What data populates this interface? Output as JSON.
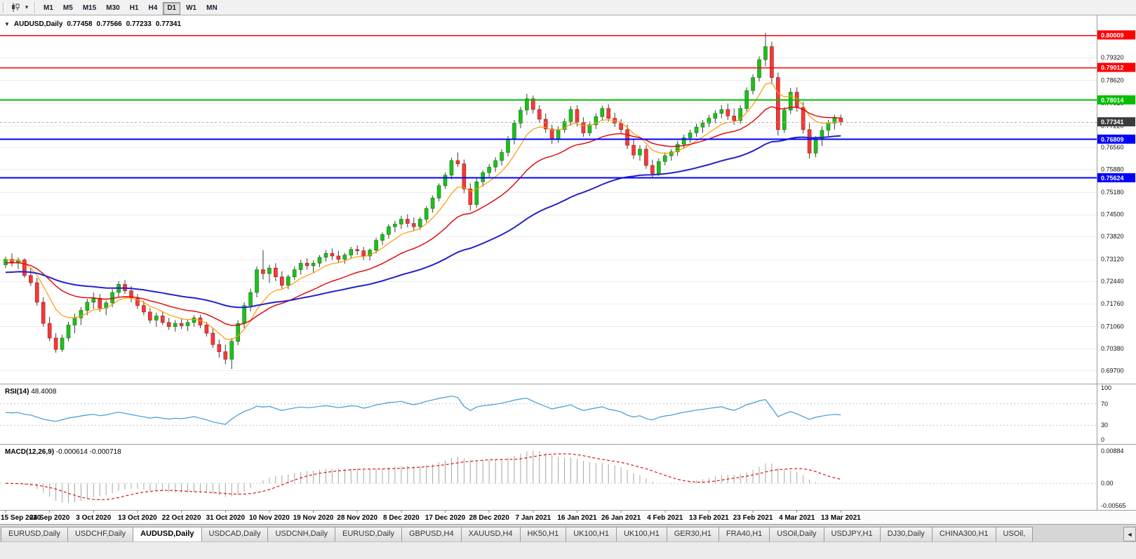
{
  "icons": {
    "collapse": "▼",
    "dropdown": "▾",
    "tab_scroll_left": "◄"
  },
  "toolbar": {
    "periods": [
      {
        "label": "M1",
        "active": false
      },
      {
        "label": "M5",
        "active": false
      },
      {
        "label": "M15",
        "active": false
      },
      {
        "label": "M30",
        "active": false
      },
      {
        "label": "H1",
        "active": false
      },
      {
        "label": "H4",
        "active": false
      },
      {
        "label": "D1",
        "active": true
      },
      {
        "label": "W1",
        "active": false
      },
      {
        "label": "MN",
        "active": false
      }
    ]
  },
  "chart": {
    "header": {
      "symbol": "AUDUSD,Daily",
      "open": "0.77458",
      "high": "0.77566",
      "low": "0.77233",
      "close": "0.77341"
    }
  },
  "rsi": {
    "name": "RSI(14)",
    "value": "48.4008",
    "axis_labels": [
      "100",
      "70",
      "30",
      "0"
    ],
    "levels": [
      70,
      30
    ]
  },
  "macd": {
    "name": "MACD(12,26,9)",
    "values": "-0.000614 -0.000718",
    "axis_labels": [
      "0.00884",
      "0.00",
      "-0.00565"
    ]
  },
  "tabs": {
    "items": [
      {
        "label": "EURUSD,Daily",
        "active": false
      },
      {
        "label": "USDCHF,Daily",
        "active": false
      },
      {
        "label": "AUDUSD,Daily",
        "active": true
      },
      {
        "label": "USDCAD,Daily",
        "active": false
      },
      {
        "label": "USDCNH,Daily",
        "active": false
      },
      {
        "label": "EURUSD,Daily",
        "active": false
      },
      {
        "label": "GBPUSD,H4",
        "active": false
      },
      {
        "label": "XAUUSD,H4",
        "active": false
      },
      {
        "label": "HK50,H1",
        "active": false
      },
      {
        "label": "UK100,H1",
        "active": false
      },
      {
        "label": "UK100,H1",
        "active": false
      },
      {
        "label": "GER30,H1",
        "active": false
      },
      {
        "label": "FRA40,H1",
        "active": false
      },
      {
        "label": "USOil,Daily",
        "active": false
      },
      {
        "label": "USDJPY,H1",
        "active": false
      },
      {
        "label": "DJ30,Daily",
        "active": false
      },
      {
        "label": "CHINA300,H1",
        "active": false
      },
      {
        "label": "USOil,",
        "active": false
      }
    ]
  },
  "chart_data": {
    "type": "candlestick",
    "symbol": "AUDUSD",
    "timeframe": "Daily",
    "ylim": [
      0.6958,
      0.8022
    ],
    "colors": {
      "up": "#1FBE1F",
      "up_stroke": "#0B7A0B",
      "down": "#F23B3B",
      "down_stroke": "#A51414",
      "wick": "#3C3C3C",
      "ma_fast": "#FF9900",
      "ma_mid": "#E00000",
      "ma_slow": "#2222CC",
      "rsi": "#3E9BD8",
      "macd_hist": "#A6A6A6",
      "macd_signal": "#E00000",
      "grid": "#EDEDED",
      "axis_line": "#9A9A9A",
      "current_line": "#B0B0B0",
      "current_box": "#3B3B3B"
    },
    "price_ticks": [
      "0.79320",
      "0.78620",
      "0.77920",
      "0.77220",
      "0.76560",
      "0.75880",
      "0.75180",
      "0.74500",
      "0.73820",
      "0.73120",
      "0.72440",
      "0.71760",
      "0.71060",
      "0.70380",
      "0.69700"
    ],
    "hlines": [
      {
        "price": 0.80009,
        "label": "0.80009",
        "color": "#FF0000",
        "width": 1.5
      },
      {
        "price": 0.79012,
        "label": "0.79012",
        "color": "#FF0000",
        "width": 1.5
      },
      {
        "price": 0.78014,
        "label": "0.78014",
        "color": "#00BE00",
        "width": 2
      },
      {
        "price": 0.76809,
        "label": "0.76809",
        "color": "#0000FF",
        "width": 2
      },
      {
        "price": 0.75624,
        "label": "0.75624",
        "color": "#0000FF",
        "width": 2
      }
    ],
    "current_price": {
      "price": 0.77341,
      "label": "0.77341"
    },
    "indicators": {
      "ma_fast_period": 8,
      "ma_mid_period": 21,
      "ma_slow_period": 55,
      "rsi_period": 14,
      "macd": [
        12,
        26,
        9
      ]
    },
    "time_tick_every": 7,
    "time_labels": [
      "15 Sep 2020",
      "24 Sep 2020",
      "3 Oct 2020",
      "13 Oct 2020",
      "22 Oct 2020",
      "31 Oct 2020",
      "10 Nov 2020",
      "19 Nov 2020",
      "28 Nov 2020",
      "8 Dec 2020",
      "17 Dec 2020",
      "28 Dec 2020",
      "7 Jan 2021",
      "16 Jan 2021",
      "26 Jan 2021",
      "4 Feb 2021",
      "13 Feb 2021",
      "23 Feb 2021",
      "4 Mar 2021",
      "13 Mar 2021"
    ],
    "ohlc": [
      [
        0.7295,
        0.732,
        0.7285,
        0.7312
      ],
      [
        0.7312,
        0.733,
        0.729,
        0.73
      ],
      [
        0.73,
        0.7318,
        0.7282,
        0.731
      ],
      [
        0.731,
        0.7315,
        0.7255,
        0.7262
      ],
      [
        0.7262,
        0.7285,
        0.723,
        0.724
      ],
      [
        0.724,
        0.7255,
        0.717,
        0.718
      ],
      [
        0.718,
        0.7195,
        0.7105,
        0.7115
      ],
      [
        0.7115,
        0.7135,
        0.706,
        0.707
      ],
      [
        0.707,
        0.7085,
        0.7025,
        0.7035
      ],
      [
        0.7035,
        0.708,
        0.7028,
        0.707
      ],
      [
        0.707,
        0.712,
        0.706,
        0.711
      ],
      [
        0.711,
        0.7145,
        0.7085,
        0.7132
      ],
      [
        0.7132,
        0.7165,
        0.711,
        0.7155
      ],
      [
        0.7155,
        0.719,
        0.714,
        0.718
      ],
      [
        0.718,
        0.721,
        0.716,
        0.7192
      ],
      [
        0.7192,
        0.7205,
        0.715,
        0.7162
      ],
      [
        0.7162,
        0.7185,
        0.714,
        0.7178
      ],
      [
        0.7178,
        0.722,
        0.7165,
        0.721
      ],
      [
        0.721,
        0.7245,
        0.7195,
        0.7235
      ],
      [
        0.7235,
        0.7248,
        0.7205,
        0.7215
      ],
      [
        0.7215,
        0.723,
        0.718,
        0.7192
      ],
      [
        0.7192,
        0.7205,
        0.716,
        0.717
      ],
      [
        0.717,
        0.7185,
        0.714,
        0.715
      ],
      [
        0.715,
        0.7162,
        0.7115,
        0.7125
      ],
      [
        0.7125,
        0.7148,
        0.7105,
        0.7138
      ],
      [
        0.7138,
        0.7152,
        0.711,
        0.7118
      ],
      [
        0.7118,
        0.7132,
        0.7095,
        0.7105
      ],
      [
        0.7105,
        0.7125,
        0.709,
        0.7115
      ],
      [
        0.7115,
        0.713,
        0.7098,
        0.7108
      ],
      [
        0.7108,
        0.7125,
        0.7092,
        0.7118
      ],
      [
        0.7118,
        0.714,
        0.7105,
        0.7132
      ],
      [
        0.7132,
        0.7142,
        0.71,
        0.711
      ],
      [
        0.711,
        0.712,
        0.7075,
        0.7085
      ],
      [
        0.7085,
        0.71,
        0.704,
        0.705
      ],
      [
        0.705,
        0.7065,
        0.701,
        0.7028
      ],
      [
        0.7028,
        0.705,
        0.699,
        0.7005
      ],
      [
        0.7005,
        0.707,
        0.6975,
        0.706
      ],
      [
        0.706,
        0.7125,
        0.7048,
        0.7115
      ],
      [
        0.7115,
        0.718,
        0.71,
        0.717
      ],
      [
        0.717,
        0.7222,
        0.7152,
        0.721
      ],
      [
        0.721,
        0.729,
        0.7195,
        0.728
      ],
      [
        0.728,
        0.734,
        0.725,
        0.7268
      ],
      [
        0.7268,
        0.7295,
        0.724,
        0.7285
      ],
      [
        0.7285,
        0.73,
        0.7245,
        0.7258
      ],
      [
        0.7258,
        0.7275,
        0.7222,
        0.7232
      ],
      [
        0.7232,
        0.7265,
        0.722,
        0.7258
      ],
      [
        0.7258,
        0.729,
        0.7248,
        0.728
      ],
      [
        0.728,
        0.731,
        0.7265,
        0.73
      ],
      [
        0.73,
        0.7315,
        0.728,
        0.7292
      ],
      [
        0.7292,
        0.7308,
        0.727,
        0.73
      ],
      [
        0.73,
        0.7325,
        0.7288,
        0.7318
      ],
      [
        0.7318,
        0.734,
        0.7305,
        0.733
      ],
      [
        0.733,
        0.7345,
        0.731,
        0.7322
      ],
      [
        0.7322,
        0.7338,
        0.73,
        0.7312
      ],
      [
        0.7312,
        0.7332,
        0.7298,
        0.7325
      ],
      [
        0.7325,
        0.735,
        0.7315,
        0.7342
      ],
      [
        0.7342,
        0.7355,
        0.7325,
        0.7338
      ],
      [
        0.7338,
        0.735,
        0.731,
        0.7322
      ],
      [
        0.7322,
        0.7345,
        0.7308,
        0.734
      ],
      [
        0.734,
        0.7378,
        0.733,
        0.737
      ],
      [
        0.737,
        0.7395,
        0.7355,
        0.7388
      ],
      [
        0.7388,
        0.742,
        0.7375,
        0.7412
      ],
      [
        0.7412,
        0.743,
        0.7395,
        0.742
      ],
      [
        0.742,
        0.7445,
        0.7405,
        0.7435
      ],
      [
        0.7435,
        0.745,
        0.741,
        0.7422
      ],
      [
        0.7422,
        0.744,
        0.74,
        0.7412
      ],
      [
        0.7412,
        0.7442,
        0.7402,
        0.7435
      ],
      [
        0.7435,
        0.7475,
        0.7425,
        0.7468
      ],
      [
        0.7468,
        0.7508,
        0.7455,
        0.75
      ],
      [
        0.75,
        0.7545,
        0.749,
        0.7538
      ],
      [
        0.7538,
        0.7578,
        0.7528,
        0.757
      ],
      [
        0.757,
        0.7624,
        0.7558,
        0.7615
      ],
      [
        0.7615,
        0.764,
        0.7595,
        0.7605
      ],
      [
        0.7605,
        0.7618,
        0.7515,
        0.7528
      ],
      [
        0.7528,
        0.7545,
        0.7462,
        0.748
      ],
      [
        0.748,
        0.756,
        0.747,
        0.755
      ],
      [
        0.755,
        0.7585,
        0.7535,
        0.7578
      ],
      [
        0.7578,
        0.7605,
        0.7565,
        0.7595
      ],
      [
        0.7595,
        0.7625,
        0.758,
        0.7615
      ],
      [
        0.7615,
        0.765,
        0.76,
        0.764
      ],
      [
        0.764,
        0.769,
        0.7628,
        0.768
      ],
      [
        0.768,
        0.774,
        0.7665,
        0.773
      ],
      [
        0.773,
        0.778,
        0.7715,
        0.777
      ],
      [
        0.777,
        0.782,
        0.7755,
        0.7805
      ],
      [
        0.7805,
        0.7815,
        0.776,
        0.7772
      ],
      [
        0.7772,
        0.7785,
        0.773,
        0.7742
      ],
      [
        0.7742,
        0.776,
        0.77,
        0.7712
      ],
      [
        0.7712,
        0.7725,
        0.7666,
        0.768
      ],
      [
        0.768,
        0.772,
        0.767,
        0.771
      ],
      [
        0.771,
        0.7745,
        0.77,
        0.7735
      ],
      [
        0.7735,
        0.7782,
        0.7722,
        0.7772
      ],
      [
        0.7772,
        0.7785,
        0.772,
        0.7732
      ],
      [
        0.7732,
        0.7748,
        0.7688,
        0.77
      ],
      [
        0.77,
        0.7735,
        0.769,
        0.7725
      ],
      [
        0.7725,
        0.776,
        0.7712,
        0.775
      ],
      [
        0.775,
        0.7784,
        0.7738,
        0.7775
      ],
      [
        0.7775,
        0.7788,
        0.7735,
        0.7745
      ],
      [
        0.7745,
        0.7762,
        0.7718,
        0.773
      ],
      [
        0.773,
        0.7742,
        0.77,
        0.771
      ],
      [
        0.771,
        0.7725,
        0.765,
        0.7662
      ],
      [
        0.7662,
        0.768,
        0.762,
        0.7632
      ],
      [
        0.7632,
        0.7662,
        0.7615,
        0.765
      ],
      [
        0.765,
        0.7662,
        0.759,
        0.76
      ],
      [
        0.76,
        0.7618,
        0.7564,
        0.7575
      ],
      [
        0.7575,
        0.7622,
        0.7568,
        0.7612
      ],
      [
        0.7612,
        0.764,
        0.76,
        0.763
      ],
      [
        0.763,
        0.765,
        0.7615,
        0.7642
      ],
      [
        0.7642,
        0.7675,
        0.763,
        0.7665
      ],
      [
        0.7665,
        0.7695,
        0.7652,
        0.7685
      ],
      [
        0.7685,
        0.771,
        0.767,
        0.77
      ],
      [
        0.77,
        0.7728,
        0.7688,
        0.7718
      ],
      [
        0.7718,
        0.774,
        0.77,
        0.773
      ],
      [
        0.773,
        0.7755,
        0.7718,
        0.7745
      ],
      [
        0.7745,
        0.777,
        0.773,
        0.776
      ],
      [
        0.776,
        0.7785,
        0.7745,
        0.7772
      ],
      [
        0.7772,
        0.779,
        0.774,
        0.7752
      ],
      [
        0.7752,
        0.7775,
        0.7725,
        0.7738
      ],
      [
        0.7738,
        0.7785,
        0.7728,
        0.7775
      ],
      [
        0.7775,
        0.784,
        0.7765,
        0.783
      ],
      [
        0.783,
        0.788,
        0.7818,
        0.787
      ],
      [
        0.787,
        0.7935,
        0.7858,
        0.7925
      ],
      [
        0.7925,
        0.8007,
        0.7905,
        0.7965
      ],
      [
        0.7965,
        0.798,
        0.785,
        0.787
      ],
      [
        0.787,
        0.7885,
        0.7692,
        0.771
      ],
      [
        0.771,
        0.778,
        0.77,
        0.777
      ],
      [
        0.777,
        0.7838,
        0.7758,
        0.7825
      ],
      [
        0.7825,
        0.784,
        0.7765,
        0.7778
      ],
      [
        0.7778,
        0.7795,
        0.7698,
        0.771
      ],
      [
        0.771,
        0.773,
        0.7621,
        0.7638
      ],
      [
        0.7638,
        0.769,
        0.7625,
        0.768
      ],
      [
        0.768,
        0.772,
        0.766,
        0.7708
      ],
      [
        0.7708,
        0.774,
        0.769,
        0.773
      ],
      [
        0.773,
        0.7756,
        0.771,
        0.7745
      ],
      [
        0.77458,
        0.77566,
        0.77233,
        0.77341
      ]
    ]
  }
}
